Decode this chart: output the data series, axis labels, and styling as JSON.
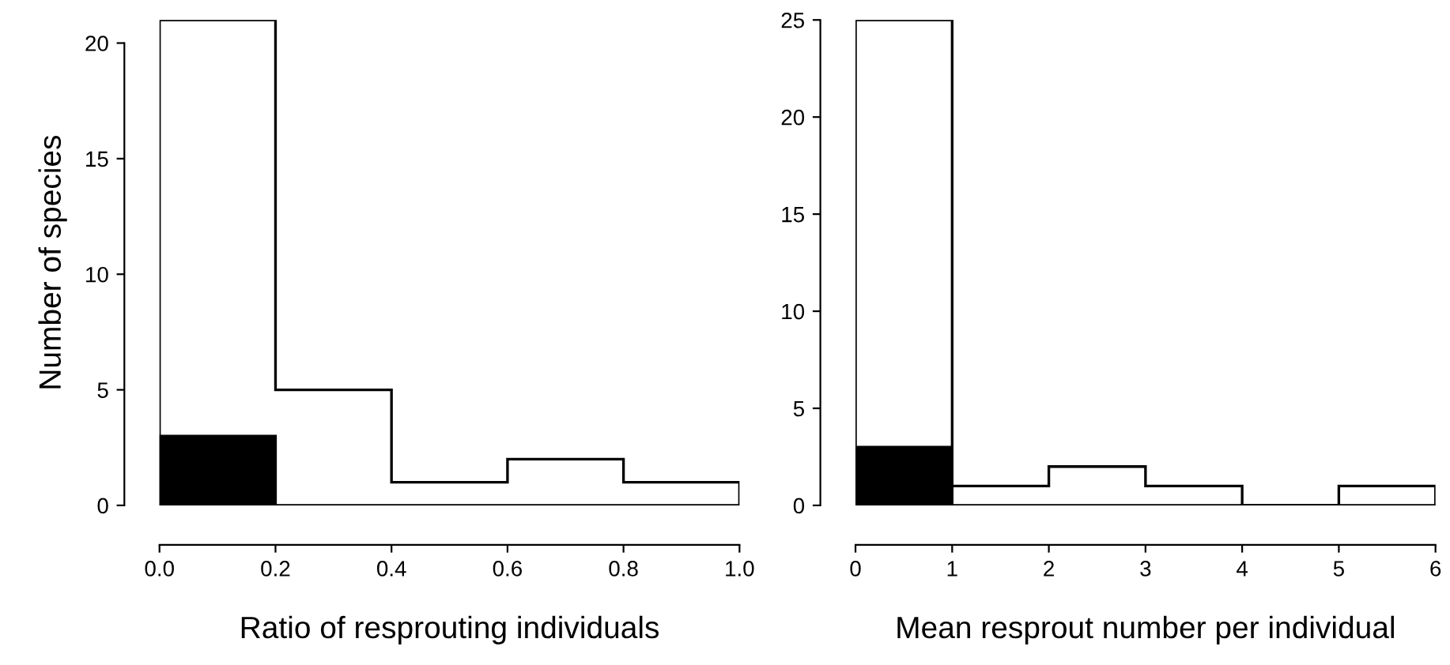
{
  "chart_data": [
    {
      "type": "histogram",
      "xlabel": "Ratio of resprouting individuals",
      "ylabel": "Number of species",
      "bins": [
        0,
        0.2,
        0.4,
        0.6,
        0.8,
        1.0
      ],
      "series": [
        {
          "color": "#ffffff",
          "values": [
            21,
            5,
            1,
            2,
            1
          ]
        },
        {
          "color": "#000000",
          "values": [
            3,
            0,
            0,
            0,
            0
          ]
        }
      ],
      "xlim": [
        0,
        1.0
      ],
      "xticks": [
        {
          "value": 0,
          "label": "0.0"
        },
        0.2,
        0.4,
        0.6,
        0.8,
        {
          "value": 1,
          "label": "1.0"
        }
      ],
      "ylim": [
        0,
        21
      ],
      "yticks": [
        0,
        5,
        10,
        15,
        20
      ]
    },
    {
      "type": "histogram",
      "xlabel": "Mean resprout number per individual",
      "bins": [
        0,
        1,
        2,
        3,
        4,
        5,
        6
      ],
      "series": [
        {
          "color": "#ffffff",
          "values": [
            25,
            1,
            2,
            1,
            0,
            1
          ]
        },
        {
          "color": "#000000",
          "values": [
            3,
            0,
            0,
            0,
            0,
            0
          ]
        }
      ],
      "xlim": [
        0,
        6
      ],
      "xticks": [
        0,
        1,
        2,
        3,
        4,
        5,
        6
      ],
      "ylim": [
        0,
        25
      ],
      "yticks": [
        0,
        5,
        10,
        15,
        20,
        25
      ]
    }
  ]
}
